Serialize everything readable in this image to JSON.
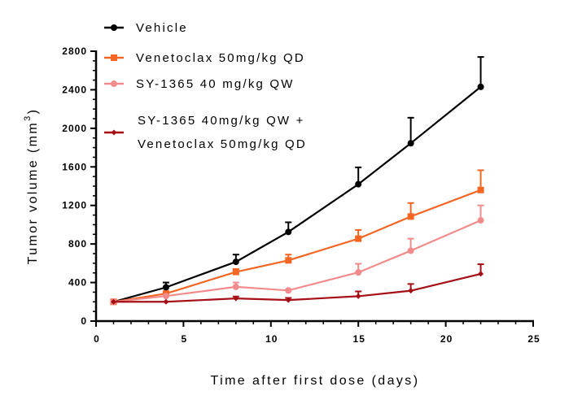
{
  "chart_data": {
    "type": "line",
    "title": "",
    "xlabel": "Time after first dose (days)",
    "ylabel": "Tumor volume (mm",
    "ylabel_superscript": "3",
    "ylabel_suffix": ")",
    "xlim": [
      0,
      25
    ],
    "ylim": [
      0,
      2800
    ],
    "xticks": [
      0,
      5,
      10,
      15,
      20,
      25
    ],
    "yticks": [
      0,
      400,
      800,
      1200,
      1600,
      2000,
      2400,
      2800
    ],
    "grid": false,
    "legend_placement": "top-left",
    "x": [
      1,
      4,
      8,
      11,
      15,
      18,
      22
    ],
    "series": [
      {
        "name": "Vehicle",
        "color": "#000000",
        "marker": "circle",
        "values": [
          200,
          350,
          615,
          925,
          1420,
          1845,
          2430
        ],
        "error_upper": [
          200,
          400,
          690,
          1025,
          1595,
          2110,
          2740
        ]
      },
      {
        "name": "Venetoclax 50mg/kg QD",
        "color": "#f26522",
        "marker": "square",
        "values": [
          200,
          285,
          510,
          630,
          855,
          1085,
          1360
        ],
        "error_upper": [
          200,
          300,
          540,
          690,
          945,
          1225,
          1565
        ]
      },
      {
        "name": "SY-1365 40 mg/kg QW",
        "color": "#f28b8b",
        "marker": "circle",
        "values": [
          200,
          260,
          355,
          318,
          505,
          730,
          1045
        ],
        "error_upper": [
          200,
          270,
          400,
          330,
          595,
          855,
          1200
        ]
      },
      {
        "name": "SY-1365 40mg/kg QW +",
        "name_line2": "Venetoclax 50mg/kg QD",
        "color": "#a50f15",
        "marker": "diamond",
        "values": [
          200,
          200,
          235,
          218,
          258,
          315,
          490
        ],
        "error_upper": [
          200,
          205,
          255,
          240,
          308,
          385,
          590
        ]
      }
    ]
  }
}
